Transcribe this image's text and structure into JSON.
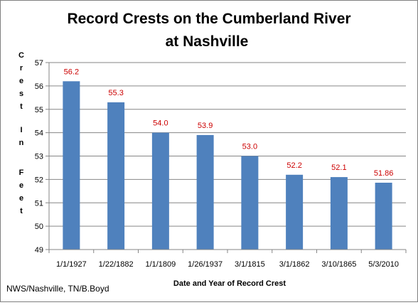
{
  "chart_data": {
    "type": "bar",
    "title_lines": [
      "Record Crests on the Cumberland River",
      "at  Nashville"
    ],
    "xlabel": "Date and Year of Record Crest",
    "ylabel_words": [
      "Crest",
      "In",
      "Feet"
    ],
    "categories": [
      "1/1/1927",
      "1/22/1882",
      "1/1/1809",
      "1/26/1937",
      "3/1/1815",
      "3/1/1862",
      "3/10/1865",
      "5/3/2010"
    ],
    "values": [
      56.2,
      55.3,
      54.0,
      53.9,
      53.0,
      52.2,
      52.1,
      51.86
    ],
    "data_labels": [
      "56.2",
      "55.3",
      "54.0",
      "53.9",
      "53.0",
      "52.2",
      "52.1",
      "51.86"
    ],
    "ylim": [
      49,
      57
    ],
    "yticks": [
      49,
      50,
      51,
      52,
      53,
      54,
      55,
      56,
      57
    ],
    "grid": true,
    "legend": "none",
    "bar_color": "#4f81bd",
    "label_color": "#cc0000",
    "grid_color": "#868686"
  },
  "footer": {
    "credit": "NWS/Nashville, TN/B.Boyd"
  }
}
